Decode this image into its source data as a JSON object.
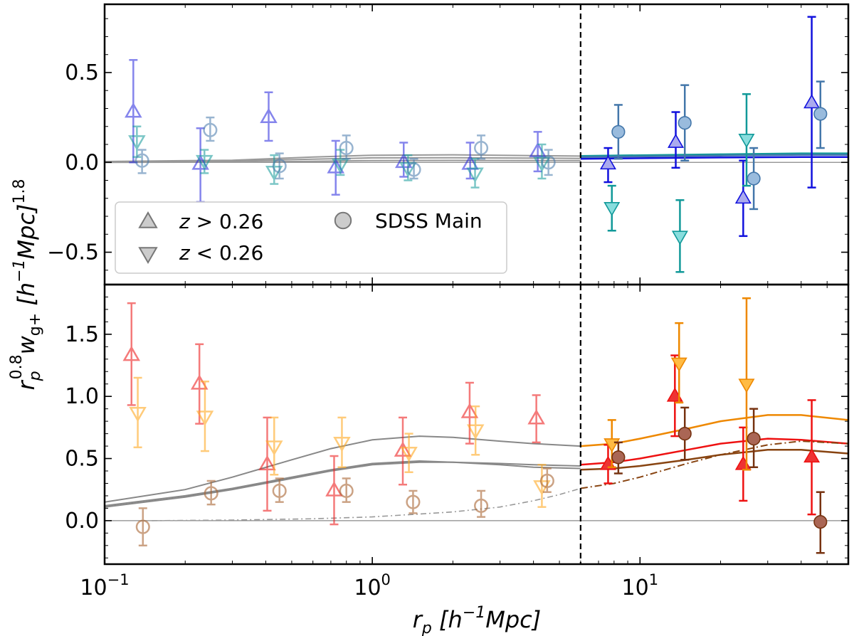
{
  "chart_data": {
    "type": "scatter",
    "x_scale": "log",
    "xlim": [
      0.1,
      60
    ],
    "xticks": [
      {
        "value": 0.1,
        "mantissa": "10",
        "exponent": "−1"
      },
      {
        "value": 1,
        "mantissa": "10",
        "exponent": "0"
      },
      {
        "value": 10,
        "mantissa": "10",
        "exponent": "1"
      }
    ],
    "xlabel": {
      "main": "r",
      "sub": "p",
      "rest": " [h",
      "exp": "−1",
      "tail": "Mpc]"
    },
    "ylabel": {
      "main": "r",
      "sub": "p",
      "sup": "0.8",
      "w": "w",
      "wsub": "g+",
      "bracket": " [h",
      "exp": "−1",
      "mpc": "Mpc]",
      "pow": "1.8"
    },
    "cut_x": 6.0,
    "panels": [
      {
        "name": "top",
        "ylim": [
          -0.68,
          0.88
        ],
        "yticks": [
          {
            "value": 0.5,
            "label": "0.5"
          },
          {
            "value": 0.0,
            "label": "0.0"
          },
          {
            "value": -0.5,
            "label": "−0.5"
          }
        ],
        "legend": {
          "position": "lower-left",
          "entries": [
            {
              "marker": "triangle-up",
              "label": "z > 0.26"
            },
            {
              "marker": "circle",
              "label": "SDSS Main"
            },
            {
              "marker": "triangle-down",
              "label": "z < 0.26"
            }
          ],
          "label_z_high": {
            "var": "z",
            "rest": " > 0.26"
          },
          "label_z_low": {
            "var": "z",
            "rest": " < 0.26"
          },
          "label_main": "SDSS Main"
        },
        "series": [
          {
            "name": "z > 0.26",
            "marker": "triangle-up",
            "stroke": "#2222dd",
            "fill": "none",
            "opacity": 0.55,
            "points": [
              [
                0.128,
                0.28,
                0.57,
                0.0
              ],
              [
                0.228,
                -0.01,
                0.19,
                -0.22
              ],
              [
                0.41,
                0.25,
                0.39,
                0.12
              ],
              [
                0.73,
                -0.03,
                0.12,
                -0.18
              ],
              [
                1.31,
                0.0,
                0.11,
                -0.08
              ],
              [
                2.32,
                -0.01,
                0.11,
                -0.09
              ],
              [
                4.15,
                0.06,
                0.17,
                -0.05
              ]
            ]
          },
          {
            "name": "z < 0.26",
            "marker": "triangle-down",
            "stroke": "#119999",
            "fill": "none",
            "opacity": 0.55,
            "points": [
              [
                0.132,
                0.12,
                0.2,
                0.03
              ],
              [
                0.236,
                0.01,
                0.07,
                -0.06
              ],
              [
                0.43,
                -0.05,
                0.04,
                -0.12
              ],
              [
                0.76,
                -0.01,
                0.07,
                -0.07
              ],
              [
                1.36,
                -0.03,
                0.04,
                -0.1
              ],
              [
                2.42,
                -0.06,
                0.02,
                -0.14
              ],
              [
                4.3,
                0.0,
                0.1,
                -0.09
              ]
            ]
          },
          {
            "name": "SDSS Main",
            "marker": "circle",
            "stroke": "#4477aa",
            "fill": "none",
            "opacity": 0.55,
            "points": [
              [
                0.138,
                0.01,
                0.07,
                -0.06
              ],
              [
                0.248,
                0.18,
                0.25,
                0.12
              ],
              [
                0.45,
                -0.02,
                0.05,
                -0.09
              ],
              [
                0.8,
                0.08,
                0.15,
                0.02
              ],
              [
                1.43,
                -0.04,
                0.02,
                -0.09
              ],
              [
                2.55,
                0.08,
                0.15,
                0.02
              ],
              [
                4.55,
                0.0,
                0.07,
                -0.07
              ]
            ]
          },
          {
            "name": "z > 0.26 (large)",
            "marker": "triangle-up",
            "stroke": "#1111dd",
            "fill": "#aaaaee",
            "opacity": 1,
            "points": [
              [
                7.6,
                -0.01,
                0.08,
                -0.11
              ],
              [
                13.6,
                0.11,
                0.28,
                -0.03
              ],
              [
                24.3,
                -0.2,
                0.01,
                -0.41
              ],
              [
                43.8,
                0.33,
                0.81,
                -0.14
              ]
            ]
          },
          {
            "name": "z < 0.26 (large)",
            "marker": "triangle-down",
            "stroke": "#119999",
            "fill": "#88dddd",
            "opacity": 1,
            "points": [
              [
                7.85,
                -0.25,
                -0.13,
                -0.38
              ],
              [
                14.1,
                -0.41,
                -0.21,
                -0.61
              ],
              [
                25.0,
                0.13,
                0.38,
                -0.13
              ]
            ]
          },
          {
            "name": "SDSS Main (large)",
            "marker": "circle",
            "stroke": "#4477aa",
            "fill": "#99bbdd",
            "opacity": 1,
            "points": [
              [
                8.3,
                0.17,
                0.32,
                0.02
              ],
              [
                14.7,
                0.22,
                0.43,
                0.01
              ],
              [
                26.6,
                -0.09,
                0.08,
                -0.26
              ],
              [
                47.2,
                0.27,
                0.45,
                0.08
              ]
            ]
          }
        ],
        "curves": [
          {
            "color": "#999999",
            "width": 2,
            "dash": "",
            "x": [
              0.1,
              0.3,
              0.6,
              1,
              2,
              4,
              6
            ],
            "y": [
              0.005,
              0.012,
              0.03,
              0.04,
              0.042,
              0.038,
              0.035
            ]
          },
          {
            "color": "#999999",
            "width": 2,
            "dash": "",
            "x": [
              0.1,
              0.3,
              0.6,
              1,
              2,
              4,
              6
            ],
            "y": [
              0.002,
              0.008,
              0.018,
              0.025,
              0.026,
              0.024,
              0.022
            ]
          },
          {
            "color": "#999999",
            "width": 2,
            "dash": "",
            "x": [
              0.1,
              0.3,
              0.6,
              1,
              2,
              4,
              6
            ],
            "y": [
              0.0,
              0.002,
              0.006,
              0.01,
              0.011,
              0.01,
              0.01
            ]
          },
          {
            "color": "#119999",
            "width": 2.5,
            "dash": "",
            "x": [
              6,
              10,
              20,
              40,
              60
            ],
            "y": [
              0.036,
              0.04,
              0.045,
              0.05,
              0.05
            ]
          },
          {
            "color": "#4477aa",
            "width": 2.5,
            "dash": "",
            "x": [
              6,
              10,
              20,
              40,
              60
            ],
            "y": [
              0.03,
              0.033,
              0.038,
              0.042,
              0.042
            ]
          },
          {
            "color": "#1111dd",
            "width": 2.5,
            "dash": "",
            "x": [
              6,
              10,
              20,
              40,
              60
            ],
            "y": [
              0.02,
              0.023,
              0.027,
              0.03,
              0.03
            ]
          }
        ]
      },
      {
        "name": "bottom",
        "ylim": [
          -0.35,
          1.9
        ],
        "yticks": [
          {
            "value": 1.5,
            "label": "1.5"
          },
          {
            "value": 1.0,
            "label": "1.0"
          },
          {
            "value": 0.5,
            "label": "0.5"
          },
          {
            "value": 0.0,
            "label": "0.0"
          }
        ],
        "series": [
          {
            "name": "z > 0.26",
            "marker": "triangle-up",
            "stroke": "#ee2222",
            "fill": "none",
            "opacity": 0.6,
            "points": [
              [
                0.126,
                1.33,
                1.75,
                0.93
              ],
              [
                0.226,
                1.1,
                1.42,
                0.78
              ],
              [
                0.405,
                0.45,
                0.83,
                0.08
              ],
              [
                0.72,
                0.24,
                0.52,
                -0.03
              ],
              [
                1.3,
                0.56,
                0.83,
                0.29
              ],
              [
                2.31,
                0.87,
                1.11,
                0.62
              ],
              [
                4.1,
                0.82,
                1.01,
                0.63
              ]
            ]
          },
          {
            "name": "z < 0.26",
            "marker": "triangle-down",
            "stroke": "#ffaa22",
            "fill": "none",
            "opacity": 0.6,
            "points": [
              [
                0.133,
                0.87,
                1.15,
                0.59
              ],
              [
                0.237,
                0.84,
                1.12,
                0.56
              ],
              [
                0.43,
                0.6,
                0.83,
                0.37
              ],
              [
                0.77,
                0.63,
                0.83,
                0.43
              ],
              [
                1.37,
                0.55,
                0.7,
                0.39
              ],
              [
                2.43,
                0.73,
                0.92,
                0.53
              ],
              [
                4.3,
                0.28,
                0.45,
                0.11
              ]
            ]
          },
          {
            "name": "SDSS Main",
            "marker": "circle",
            "stroke": "#aa6633",
            "fill": "none",
            "opacity": 0.6,
            "points": [
              [
                0.139,
                -0.05,
                0.1,
                -0.2
              ],
              [
                0.25,
                0.22,
                0.32,
                0.13
              ],
              [
                0.45,
                0.24,
                0.34,
                0.15
              ],
              [
                0.8,
                0.24,
                0.34,
                0.15
              ],
              [
                1.42,
                0.15,
                0.24,
                0.06
              ],
              [
                2.55,
                0.12,
                0.24,
                0.03
              ],
              [
                4.5,
                0.32,
                0.42,
                0.23
              ]
            ]
          },
          {
            "name": "z > 0.26 (large)",
            "marker": "triangle-up",
            "stroke": "#ee1111",
            "fill": "#ee3333",
            "opacity": 1,
            "points": [
              [
                7.6,
                0.45,
                0.61,
                0.3
              ],
              [
                13.5,
                1.0,
                1.33,
                0.68
              ],
              [
                24.3,
                0.45,
                0.75,
                0.16
              ],
              [
                43.8,
                0.51,
                0.97,
                0.05
              ]
            ]
          },
          {
            "name": "z < 0.26 (large)",
            "marker": "triangle-down",
            "stroke": "#ee8800",
            "fill": "#ffbb44",
            "opacity": 1,
            "points": [
              [
                7.85,
                0.62,
                0.81,
                0.43
              ],
              [
                14.0,
                1.27,
                1.59,
                0.95
              ],
              [
                25.0,
                1.1,
                1.79,
                0.41
              ]
            ]
          },
          {
            "name": "SDSS Main (large)",
            "marker": "circle",
            "stroke": "#773311",
            "fill": "#aa6655",
            "opacity": 1,
            "points": [
              [
                8.3,
                0.51,
                0.63,
                0.38
              ],
              [
                14.7,
                0.7,
                0.91,
                0.49
              ],
              [
                26.6,
                0.66,
                0.9,
                0.43
              ],
              [
                47.2,
                -0.01,
                0.23,
                -0.26
              ]
            ]
          }
        ],
        "curves": [
          {
            "color": "#888888",
            "width": 2,
            "dash": "",
            "x": [
              0.1,
              0.2,
              0.3,
              0.5,
              0.7,
              1,
              1.5,
              2,
              3,
              4,
              6
            ],
            "y": [
              0.15,
              0.25,
              0.35,
              0.49,
              0.58,
              0.65,
              0.68,
              0.67,
              0.64,
              0.62,
              0.6
            ]
          },
          {
            "color": "#888888",
            "width": 2,
            "dash": "",
            "x": [
              0.1,
              0.2,
              0.3,
              0.5,
              0.7,
              1,
              1.5,
              2,
              3,
              4,
              6
            ],
            "y": [
              0.12,
              0.2,
              0.26,
              0.35,
              0.41,
              0.46,
              0.48,
              0.47,
              0.45,
              0.43,
              0.42
            ]
          },
          {
            "color": "#888888",
            "width": 2,
            "dash": "",
            "x": [
              0.1,
              0.2,
              0.3,
              0.5,
              0.7,
              1,
              1.5,
              2,
              3,
              4,
              6
            ],
            "y": [
              0.11,
              0.19,
              0.25,
              0.34,
              0.4,
              0.45,
              0.47,
              0.47,
              0.46,
              0.45,
              0.44
            ]
          },
          {
            "color": "#999999",
            "width": 1.6,
            "dash": "8 4 2 4",
            "x": [
              0.15,
              0.3,
              0.6,
              1,
              2,
              3,
              4,
              5,
              6
            ],
            "y": [
              0.0,
              0.005,
              0.015,
              0.03,
              0.07,
              0.11,
              0.16,
              0.21,
              0.26
            ]
          },
          {
            "color": "#ee8800",
            "width": 2.5,
            "dash": "",
            "x": [
              6,
              8,
              10,
              15,
              20,
              30,
              40,
              60
            ],
            "y": [
              0.6,
              0.62,
              0.66,
              0.74,
              0.8,
              0.85,
              0.85,
              0.81
            ]
          },
          {
            "color": "#ee1111",
            "width": 2.5,
            "dash": "",
            "x": [
              6,
              8,
              10,
              15,
              20,
              30,
              40,
              60
            ],
            "y": [
              0.45,
              0.47,
              0.5,
              0.57,
              0.62,
              0.66,
              0.65,
              0.62
            ]
          },
          {
            "color": "#884411",
            "width": 2.5,
            "dash": "",
            "x": [
              6,
              8,
              10,
              15,
              20,
              30,
              40,
              60
            ],
            "y": [
              0.41,
              0.42,
              0.44,
              0.49,
              0.53,
              0.57,
              0.57,
              0.54
            ]
          },
          {
            "color": "#884411",
            "width": 2,
            "dash": "10 4 2 4",
            "x": [
              6,
              8,
              10,
              15,
              20,
              30,
              40,
              60
            ],
            "y": [
              0.26,
              0.3,
              0.35,
              0.46,
              0.53,
              0.61,
              0.64,
              0.62
            ]
          }
        ]
      }
    ]
  }
}
